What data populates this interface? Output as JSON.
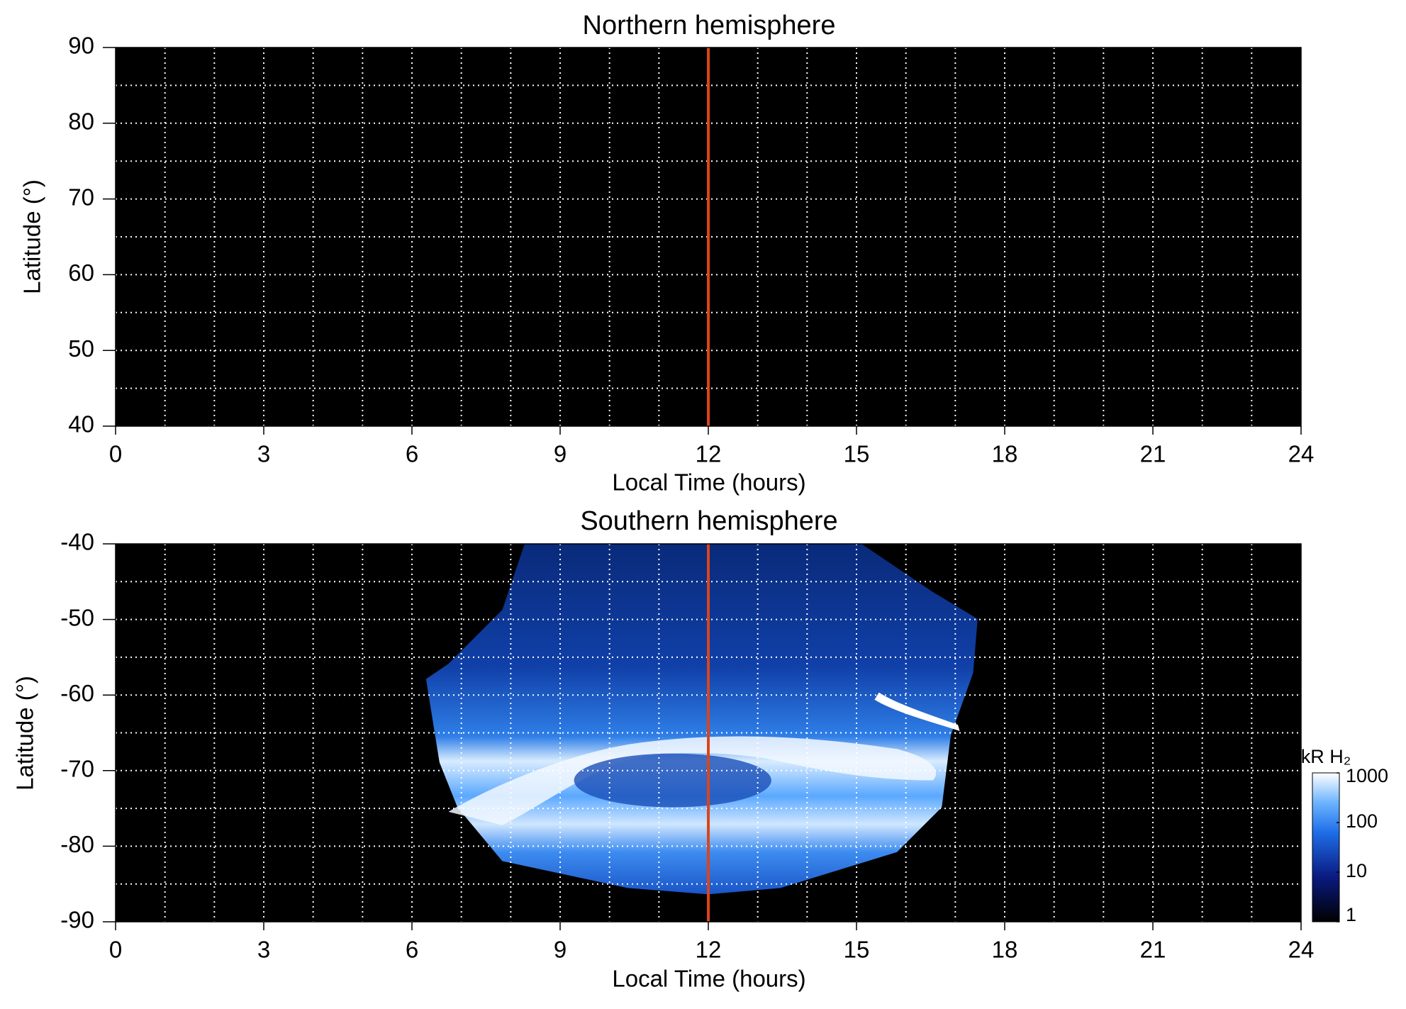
{
  "chart_data": [
    {
      "type": "image",
      "title": "Northern hemisphere",
      "x_label": "Local Time (hours)",
      "y_label": "Latitude (°)",
      "xlim": [
        0,
        24
      ],
      "xticks": [
        0,
        3,
        6,
        9,
        12,
        15,
        18,
        21,
        24
      ],
      "ylim": [
        40,
        90
      ],
      "yticks": [
        40,
        50,
        60,
        70,
        80,
        90
      ],
      "xgrid": [
        1,
        2,
        3,
        4,
        5,
        6,
        7,
        8,
        9,
        10,
        11,
        12,
        13,
        14,
        15,
        16,
        17,
        18,
        19,
        20,
        21,
        22,
        23
      ],
      "ygrid": [
        45,
        50,
        55,
        60,
        65,
        70,
        75,
        80,
        85
      ],
      "grid": true,
      "grid_color": "#ffffff",
      "vline": 12,
      "vline_color": "#d9451c"
    },
    {
      "type": "image",
      "title": "Southern hemisphere",
      "x_label": "Local Time (hours)",
      "y_label": "Latitude (°)",
      "xlim": [
        0,
        24
      ],
      "xticks": [
        0,
        3,
        6,
        9,
        12,
        15,
        18,
        21,
        24
      ],
      "ylim": [
        -90,
        -40
      ],
      "yticks": [
        -90,
        -80,
        -70,
        -60,
        -50,
        -40
      ],
      "xgrid": [
        1,
        2,
        3,
        4,
        5,
        6,
        7,
        8,
        9,
        10,
        11,
        12,
        13,
        14,
        15,
        16,
        17,
        18,
        19,
        20,
        21,
        22,
        23
      ],
      "ygrid": [
        -85,
        -80,
        -75,
        -70,
        -65,
        -60,
        -55,
        -50,
        -45
      ],
      "grid": true,
      "grid_color": "#ffffff",
      "vline": 12,
      "vline_color": "#d9451c",
      "colorbar": {
        "label": "kR H₂",
        "lim": [
          1,
          1000
        ],
        "ticks": [
          1,
          10,
          100,
          1000
        ],
        "log": true
      }
    }
  ]
}
